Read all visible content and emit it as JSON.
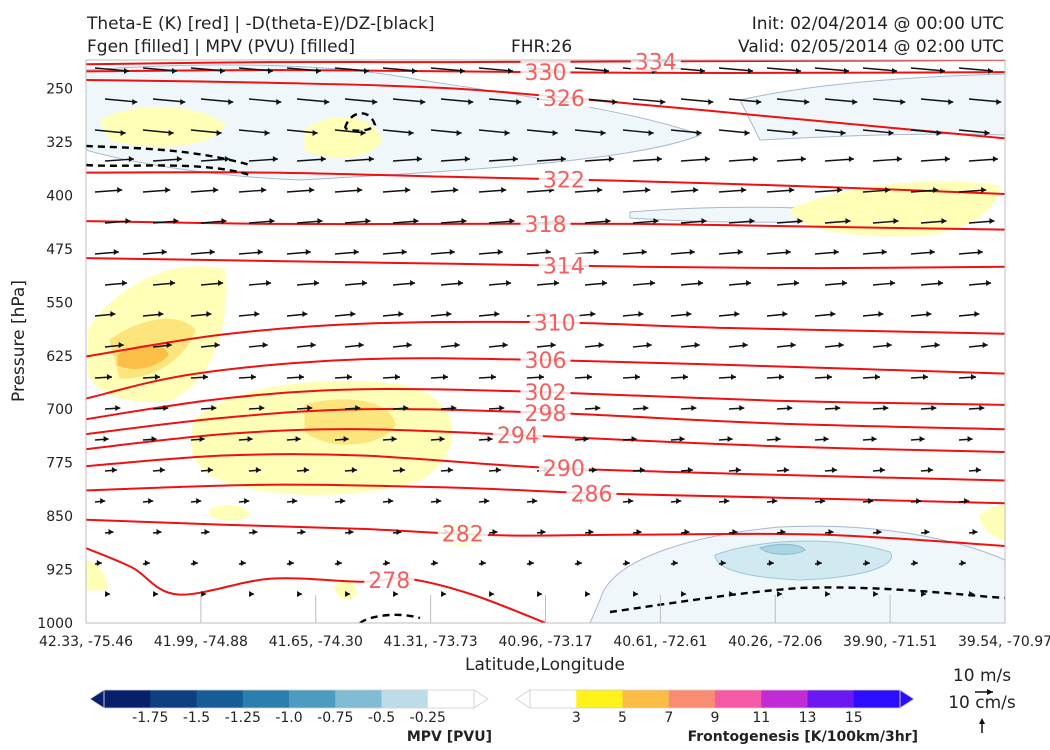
{
  "header": {
    "title_left_1": "Theta-E (K) [red] | -D(theta-E)/DZ-[black]",
    "title_left_2": "Fgen [filled] | MPV (PVU) [filled]",
    "fhr": "FHR:26",
    "init": "Init: 02/04/2014 @ 00:00 UTC",
    "valid": "Valid: 02/05/2014 @ 02:00 UTC"
  },
  "chart_data": {
    "type": "cross-section",
    "xlabel": "Latitude,Longitude",
    "ylabel": "Pressure [hPa]",
    "x_tick_labels": [
      "42.33, -75.46",
      "41.99, -74.88",
      "41.65, -74.30",
      "41.31, -73.73",
      "40.96, -73.17",
      "40.61, -72.61",
      "40.26, -72.06",
      "39.90, -71.51",
      "39.54, -70.97"
    ],
    "y_ticks": [
      250,
      325,
      400,
      475,
      550,
      625,
      700,
      775,
      850,
      925,
      1000
    ],
    "ylim": [
      210,
      1000
    ],
    "theta_e_contours": [
      {
        "label": "334",
        "points": [
          [
            0,
            216
          ],
          [
            0.2,
            213
          ],
          [
            0.4,
            213
          ],
          [
            0.6,
            212
          ],
          [
            0.8,
            211
          ],
          [
            1,
            210
          ]
        ]
      },
      {
        "label": "330",
        "points": [
          [
            0,
            226
          ],
          [
            0.2,
            224
          ],
          [
            0.4,
            226
          ],
          [
            0.6,
            228
          ],
          [
            0.8,
            228
          ],
          [
            1,
            227
          ]
        ]
      },
      {
        "label": "326",
        "points": [
          [
            0,
            238
          ],
          [
            0.2,
            242
          ],
          [
            0.4,
            250
          ],
          [
            0.6,
            272
          ],
          [
            0.8,
            296
          ],
          [
            1,
            320
          ]
        ]
      },
      {
        "label": "322",
        "points": [
          [
            0,
            368
          ],
          [
            0.2,
            368
          ],
          [
            0.4,
            374
          ],
          [
            0.6,
            380
          ],
          [
            0.8,
            388
          ],
          [
            1,
            398
          ]
        ]
      },
      {
        "label": "318",
        "points": [
          [
            0,
            436
          ],
          [
            0.2,
            440
          ],
          [
            0.4,
            440
          ],
          [
            0.6,
            440
          ],
          [
            0.8,
            444
          ],
          [
            1,
            448
          ]
        ]
      },
      {
        "label": "314",
        "points": [
          [
            0,
            488
          ],
          [
            0.2,
            492
          ],
          [
            0.4,
            496
          ],
          [
            0.6,
            500
          ],
          [
            0.8,
            502
          ],
          [
            1,
            500
          ]
        ]
      },
      {
        "label": "310",
        "points": [
          [
            0,
            626
          ],
          [
            0.15,
            595
          ],
          [
            0.3,
            580
          ],
          [
            0.5,
            578
          ],
          [
            0.7,
            586
          ],
          [
            1,
            594
          ]
        ]
      },
      {
        "label": "306",
        "points": [
          [
            0,
            685
          ],
          [
            0.12,
            650
          ],
          [
            0.3,
            630
          ],
          [
            0.5,
            631
          ],
          [
            0.75,
            640
          ],
          [
            1,
            650
          ]
        ]
      },
      {
        "label": "302",
        "points": [
          [
            0,
            714
          ],
          [
            0.15,
            685
          ],
          [
            0.3,
            672
          ],
          [
            0.5,
            676
          ],
          [
            0.75,
            688
          ],
          [
            1,
            694
          ]
        ]
      },
      {
        "label": "298",
        "points": [
          [
            0,
            735
          ],
          [
            0.15,
            712
          ],
          [
            0.3,
            700
          ],
          [
            0.5,
            705
          ],
          [
            0.75,
            720
          ],
          [
            1,
            728
          ]
        ]
      },
      {
        "label": "294",
        "points": [
          [
            0,
            756
          ],
          [
            0.15,
            735
          ],
          [
            0.3,
            728
          ],
          [
            0.5,
            738
          ],
          [
            0.75,
            752
          ],
          [
            1,
            760
          ]
        ]
      },
      {
        "label": "290",
        "points": [
          [
            0,
            780
          ],
          [
            0.15,
            765
          ],
          [
            0.3,
            765
          ],
          [
            0.5,
            782
          ],
          [
            0.75,
            792
          ],
          [
            1,
            800
          ]
        ]
      },
      {
        "label": "286",
        "points": [
          [
            0,
            814
          ],
          [
            0.2,
            806
          ],
          [
            0.4,
            810
          ],
          [
            0.55,
            818
          ],
          [
            0.75,
            824
          ],
          [
            1,
            832
          ]
        ]
      },
      {
        "label": "282",
        "points": [
          [
            0,
            855
          ],
          [
            0.15,
            862
          ],
          [
            0.3,
            868
          ],
          [
            0.45,
            877
          ],
          [
            0.6,
            876
          ],
          [
            0.8,
            876
          ],
          [
            1,
            892
          ]
        ]
      },
      {
        "label": "278",
        "points": [
          [
            0,
            895
          ],
          [
            0.05,
            922
          ],
          [
            0.1,
            960
          ],
          [
            0.2,
            938
          ],
          [
            0.3,
            942
          ],
          [
            0.35,
            938
          ],
          [
            0.42,
            960
          ],
          [
            0.5,
            1000
          ]
        ]
      }
    ],
    "mpv_colorbar": {
      "label": "MPV [PVU]",
      "ticks": [
        "-1.75",
        "-1.5",
        "-1.25",
        "-1.0",
        "-0.75",
        "-0.5",
        "-0.25"
      ],
      "colors": [
        "#08206b",
        "#0e3f82",
        "#155c99",
        "#2a7fae",
        "#4b9cc0",
        "#80bdd5",
        "#bcdde8",
        "#ffffff"
      ]
    },
    "fgen_colorbar": {
      "label": "Frontogenesis [K/100km/3hr]",
      "ticks": [
        "3",
        "5",
        "7",
        "9",
        "11",
        "13",
        "15"
      ],
      "colors": [
        "#ffffff",
        "#fff319",
        "#fbbd45",
        "#f98c72",
        "#f55aa6",
        "#c22ad5",
        "#6c18f2",
        "#2b0dff"
      ]
    },
    "vector_key": {
      "horizontal": "10 m/s",
      "vertical": "10 cm/s"
    }
  }
}
